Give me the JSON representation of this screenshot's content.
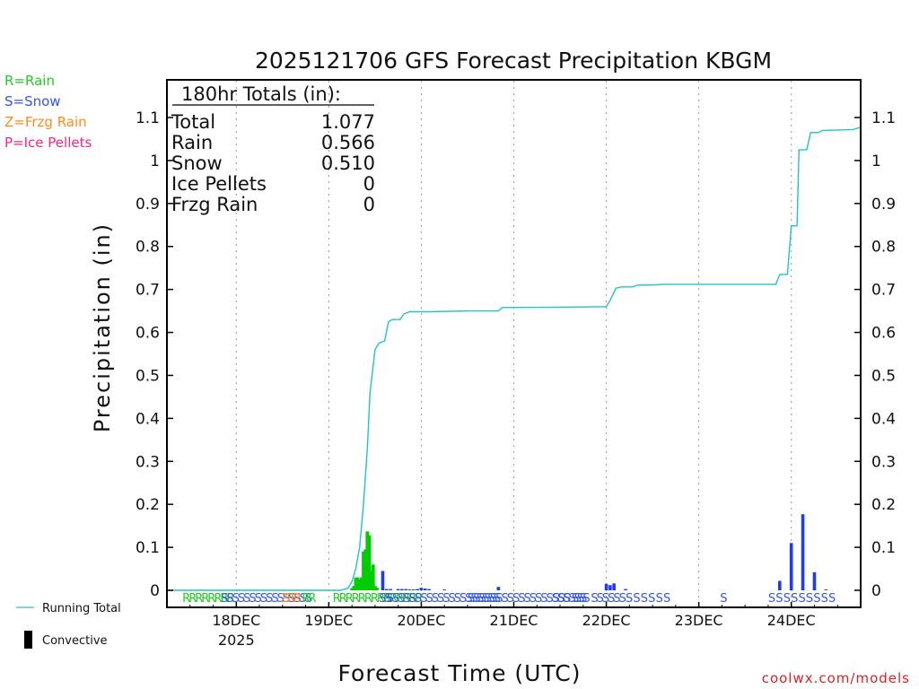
{
  "chart_data": {
    "type": "bar",
    "title": "2025121706 GFS Forecast Precipitation KBGM",
    "ylabel": "Precipitation (in)",
    "xlabel": "Forecast Time (UTC)",
    "ylim": [
      0,
      1.18
    ],
    "xlim_hours": [
      0,
      180
    ],
    "yticks": [
      "0",
      "0.1",
      "0.2",
      "0.3",
      "0.4",
      "0.5",
      "0.6",
      "0.7",
      "0.8",
      "0.9",
      "1",
      "1.1"
    ],
    "date_ticks": [
      {
        "label": "18DEC",
        "hour": 18,
        "sublabel": "2025"
      },
      {
        "label": "19DEC",
        "hour": 42,
        "sublabel": ""
      },
      {
        "label": "20DEC",
        "hour": 66,
        "sublabel": ""
      },
      {
        "label": "21DEC",
        "hour": 90,
        "sublabel": ""
      },
      {
        "label": "22DEC",
        "hour": 114,
        "sublabel": ""
      },
      {
        "label": "23DEC",
        "hour": 138,
        "sublabel": ""
      },
      {
        "label": "24DEC",
        "hour": 162,
        "sublabel": ""
      }
    ],
    "colors": {
      "rain": "#00cc00",
      "snow": "#1f3bf0",
      "running_total": "#20c4c4",
      "frzg": "#ff8800",
      "ice": "#ff2288"
    },
    "precip_type_legend": [
      {
        "label": "R=Rain",
        "color": "#22cc22"
      },
      {
        "label": "S=Snow",
        "color": "#3355ee"
      },
      {
        "label": "Z=Frzg Rain",
        "color": "#ff8c1a"
      },
      {
        "label": "P=Ice Pellets",
        "color": "#ff2288"
      }
    ],
    "totals": {
      "header": "180hr Totals (in):",
      "rows": [
        {
          "label": "Total",
          "value": "1.077"
        },
        {
          "label": "Rain",
          "value": "0.566"
        },
        {
          "label": "Snow",
          "value": "0.510"
        },
        {
          "label": "Ice Pellets",
          "value": "0"
        },
        {
          "label": "Frzg Rain",
          "value": "0"
        }
      ]
    },
    "series": [
      {
        "name": "Rain",
        "type": "R",
        "bars": [
          [
            48.0,
            0.005
          ],
          [
            48.5,
            0.01
          ],
          [
            49.0,
            0.03
          ],
          [
            49.5,
            0.03
          ],
          [
            50.0,
            0.025
          ],
          [
            50.5,
            0.03
          ],
          [
            51.0,
            0.09
          ],
          [
            51.5,
            0.095
          ],
          [
            52.0,
            0.137
          ],
          [
            52.5,
            0.128
          ],
          [
            53.0,
            0.045
          ],
          [
            53.5,
            0.06
          ],
          [
            54.0,
            0.01
          ],
          [
            54.5,
            0.006
          ]
        ]
      },
      {
        "name": "Snow",
        "type": "S",
        "bars": [
          [
            56.0,
            0.045
          ],
          [
            57.0,
            0.003
          ],
          [
            58.0,
            0.003
          ],
          [
            60.0,
            0.003
          ],
          [
            61.0,
            0.003
          ],
          [
            62.0,
            0.003
          ],
          [
            63.0,
            0.002
          ],
          [
            64.0,
            0.002
          ],
          [
            65.0,
            0.003
          ],
          [
            66.0,
            0.006
          ],
          [
            67.0,
            0.004
          ],
          [
            68.0,
            0.003
          ],
          [
            72.0,
            0.002
          ],
          [
            86.0,
            0.008
          ],
          [
            114.0,
            0.015
          ],
          [
            115.0,
            0.012
          ],
          [
            116.0,
            0.016
          ],
          [
            119.0,
            0.003
          ],
          [
            159.0,
            0.022
          ],
          [
            162.0,
            0.11
          ],
          [
            165.0,
            0.177
          ],
          [
            168.0,
            0.042
          ],
          [
            171.0,
            0.002
          ]
        ]
      }
    ],
    "running_total": [
      [
        0,
        0
      ],
      [
        45,
        0
      ],
      [
        47,
        0.005
      ],
      [
        48,
        0.02
      ],
      [
        49,
        0.05
      ],
      [
        50,
        0.1
      ],
      [
        51,
        0.2
      ],
      [
        52,
        0.33
      ],
      [
        52.7,
        0.46
      ],
      [
        54,
        0.56
      ],
      [
        55,
        0.575
      ],
      [
        56.5,
        0.58
      ],
      [
        57.5,
        0.625
      ],
      [
        58.5,
        0.63
      ],
      [
        60.5,
        0.63
      ],
      [
        61.5,
        0.643
      ],
      [
        63,
        0.648
      ],
      [
        68,
        0.648
      ],
      [
        78,
        0.65
      ],
      [
        86,
        0.65
      ],
      [
        87,
        0.658
      ],
      [
        105,
        0.659
      ],
      [
        114,
        0.66
      ],
      [
        115,
        0.675
      ],
      [
        116.5,
        0.703
      ],
      [
        118,
        0.706
      ],
      [
        121,
        0.706
      ],
      [
        122,
        0.71
      ],
      [
        125,
        0.71
      ],
      [
        129,
        0.712
      ],
      [
        158,
        0.712
      ],
      [
        159,
        0.735
      ],
      [
        161,
        0.735
      ],
      [
        162,
        0.848
      ],
      [
        163.5,
        0.848
      ],
      [
        164,
        1.025
      ],
      [
        166,
        1.025
      ],
      [
        167,
        1.065
      ],
      [
        169,
        1.065
      ],
      [
        170,
        1.07
      ],
      [
        178,
        1.072
      ],
      [
        180,
        1.077
      ]
    ],
    "ptype_strip": [
      {
        "hour": 4,
        "text": "RRRRRRRR",
        "type": "R"
      },
      {
        "hour": 14,
        "text": "SSSSSSSSSSSSSSSS",
        "type": "S"
      },
      {
        "hour": 29.5,
        "text": "ZRR",
        "type": "Z"
      },
      {
        "hour": 35,
        "text": "RR",
        "type": "R"
      },
      {
        "hour": 43,
        "text": "RRRRRRRRRRRRRR",
        "type": "R"
      },
      {
        "hour": 55,
        "text": "SS",
        "type": "S"
      },
      {
        "hour": 57,
        "text": "SSSSSSSSSSSSSSSSSSSS",
        "type": "S"
      },
      {
        "hour": 78,
        "text": "SSSSSSSSSSSSSSSSSSSSS",
        "type": "S"
      },
      {
        "hour": 100,
        "text": "SSS",
        "type": "S"
      },
      {
        "hour": 105,
        "text": "SSS",
        "type": "S"
      },
      {
        "hour": 110,
        "text": "SSSSSS",
        "type": "S"
      },
      {
        "hour": 119,
        "text": "S S S S S S",
        "type": "S"
      },
      {
        "hour": 143.5,
        "text": "S",
        "type": "S"
      },
      {
        "hour": 156,
        "text": "S S S S S S S S S",
        "type": "S"
      }
    ],
    "line_legend": {
      "running": "Running Total",
      "convective": "Convective"
    },
    "credit": "coolwx.com/models"
  }
}
